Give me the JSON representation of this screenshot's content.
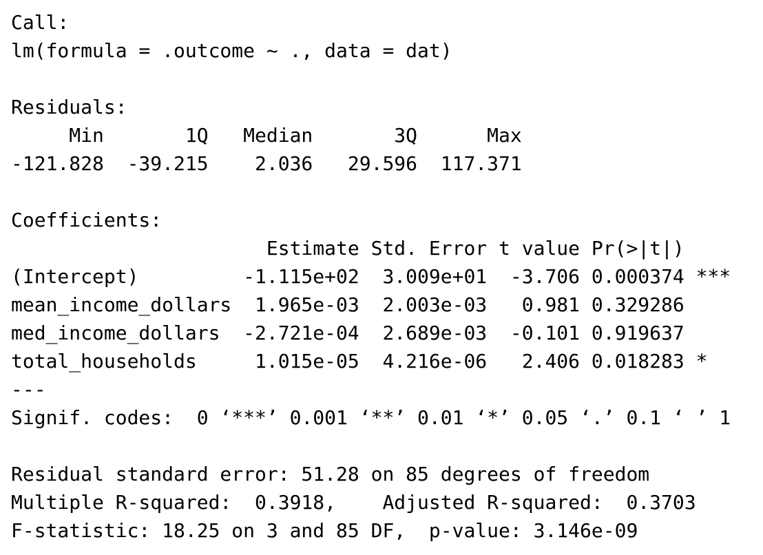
{
  "call": {
    "heading": "Call:",
    "formula": "lm(formula = .outcome ~ ., data = dat)"
  },
  "residuals": {
    "heading": "Residuals:",
    "header_line": "     Min       1Q   Median       3Q      Max ",
    "values_line": "-121.828  -39.215    2.036   29.596  117.371 "
  },
  "coefficients": {
    "heading": "Coefficients:",
    "header_line": "                      Estimate Std. Error t value Pr(>|t|)    ",
    "rows": [
      {
        "line": "(Intercept)         -1.115e+02  3.009e+01  -3.706 0.000374 ***"
      },
      {
        "line": "mean_income_dollars  1.965e-03  2.003e-03   0.981 0.329286    "
      },
      {
        "line": "med_income_dollars  -2.721e-04  2.689e-03  -0.101 0.919637    "
      },
      {
        "line": "total_households     1.015e-05  4.216e-06   2.406 0.018283 *  "
      }
    ],
    "separator": "---",
    "signif_codes": "Signif. codes:  0 ‘***’ 0.001 ‘**’ 0.01 ‘*’ 0.05 ‘.’ 0.1 ‘ ’ 1"
  },
  "summary": {
    "residual_se": "Residual standard error: 51.28 on 85 degrees of freedom",
    "r_squared": "Multiple R-squared:  0.3918,\tAdjusted R-squared:  0.3703 ",
    "f_statistic": "F-statistic: 18.25 on 3 and 85 DF,  p-value: 3.146e-09"
  }
}
